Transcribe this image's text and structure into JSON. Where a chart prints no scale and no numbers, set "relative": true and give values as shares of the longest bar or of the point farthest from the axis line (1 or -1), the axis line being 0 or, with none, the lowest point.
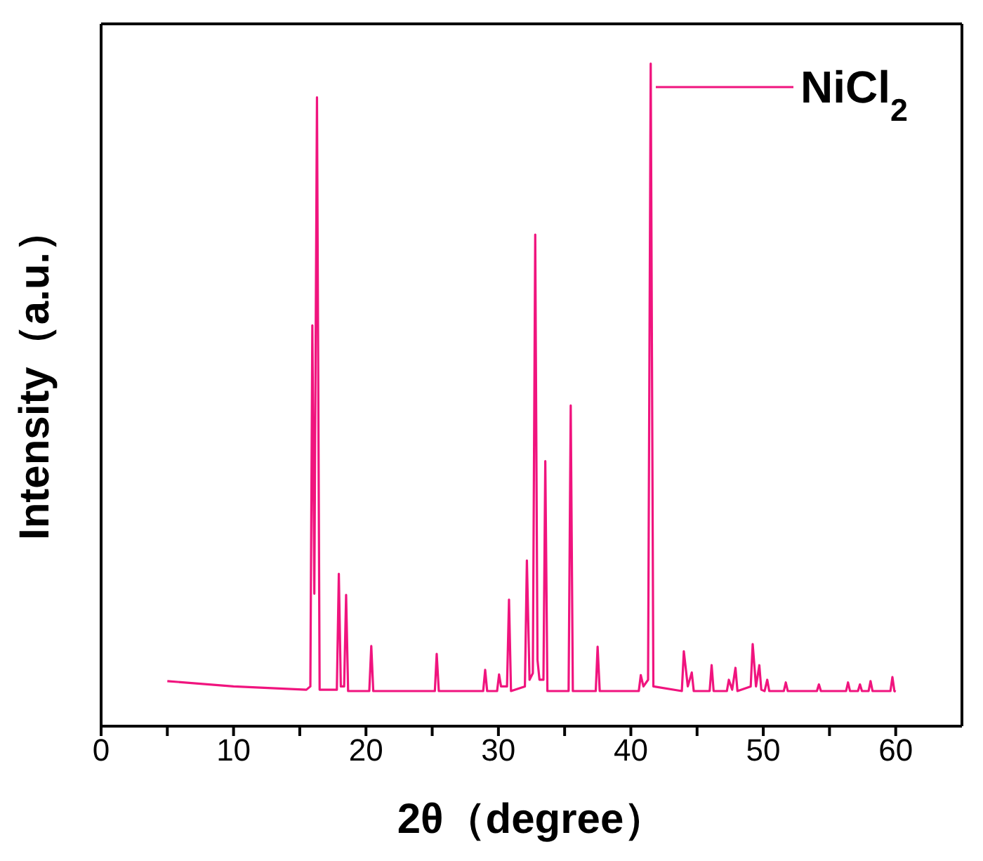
{
  "chart_data": {
    "type": "line",
    "relative": true,
    "xlabel": "2θ（degree）",
    "ylabel": "Intensity（a.u.）",
    "xlim": [
      0,
      65
    ],
    "xticks": [
      0,
      {
        "value": 5,
        "label": null
      },
      10,
      {
        "value": 15,
        "label": null
      },
      20,
      {
        "value": 25,
        "label": null
      },
      30,
      {
        "value": 35,
        "label": null
      },
      40,
      {
        "value": 45,
        "label": null
      },
      50,
      {
        "value": 55,
        "label": null
      },
      60
    ],
    "annotations": [
      "NiCl$_{2}$"
    ],
    "marker": "none",
    "legend": false,
    "series": [
      {
        "color": "#f0147e",
        "x": [
          5,
          10,
          15.5,
          15.8,
          15.95,
          16.1,
          16.3,
          16.5,
          17.8,
          17.95,
          18.1,
          18.35,
          18.5,
          18.65,
          20.25,
          20.4,
          20.55,
          25.2,
          25.34,
          25.5,
          28.85,
          29.0,
          29.15,
          29.9,
          30.05,
          30.2,
          30.65,
          30.8,
          30.95,
          32.0,
          32.15,
          32.35,
          32.6,
          32.78,
          32.95,
          33.1,
          33.4,
          33.54,
          33.7,
          35.3,
          35.46,
          35.62,
          37.35,
          37.49,
          37.65,
          40.6,
          40.75,
          40.95,
          41.3,
          41.5,
          41.7,
          43.85,
          44.0,
          44.3,
          44.6,
          44.75,
          45.95,
          46.1,
          46.25,
          47.25,
          47.4,
          47.65,
          47.9,
          48.05,
          49.05,
          49.2,
          49.45,
          49.7,
          49.85,
          50.1,
          50.3,
          50.45,
          51.55,
          51.7,
          51.85,
          54.05,
          54.2,
          54.35,
          56.25,
          56.4,
          56.55,
          57.15,
          57.3,
          57.45,
          57.95,
          58.1,
          58.25,
          59.6,
          59.75,
          59.9,
          60
        ],
        "values": [
          0.068,
          0.06,
          0.055,
          0.06,
          0.605,
          0.2,
          0.949,
          0.055,
          0.055,
          0.23,
          0.06,
          0.06,
          0.198,
          0.053,
          0.053,
          0.121,
          0.053,
          0.053,
          0.109,
          0.053,
          0.053,
          0.085,
          0.053,
          0.053,
          0.078,
          0.06,
          0.06,
          0.191,
          0.053,
          0.06,
          0.25,
          0.07,
          0.08,
          0.742,
          0.1,
          0.07,
          0.07,
          0.4,
          0.053,
          0.053,
          0.484,
          0.053,
          0.053,
          0.12,
          0.053,
          0.053,
          0.077,
          0.06,
          0.07,
          1.0,
          0.06,
          0.053,
          0.113,
          0.06,
          0.081,
          0.053,
          0.053,
          0.092,
          0.053,
          0.053,
          0.07,
          0.055,
          0.088,
          0.053,
          0.06,
          0.124,
          0.06,
          0.092,
          0.055,
          0.053,
          0.07,
          0.053,
          0.053,
          0.066,
          0.053,
          0.053,
          0.063,
          0.053,
          0.053,
          0.066,
          0.053,
          0.053,
          0.063,
          0.053,
          0.053,
          0.068,
          0.053,
          0.053,
          0.074,
          0.053,
          0.052
        ]
      }
    ]
  }
}
